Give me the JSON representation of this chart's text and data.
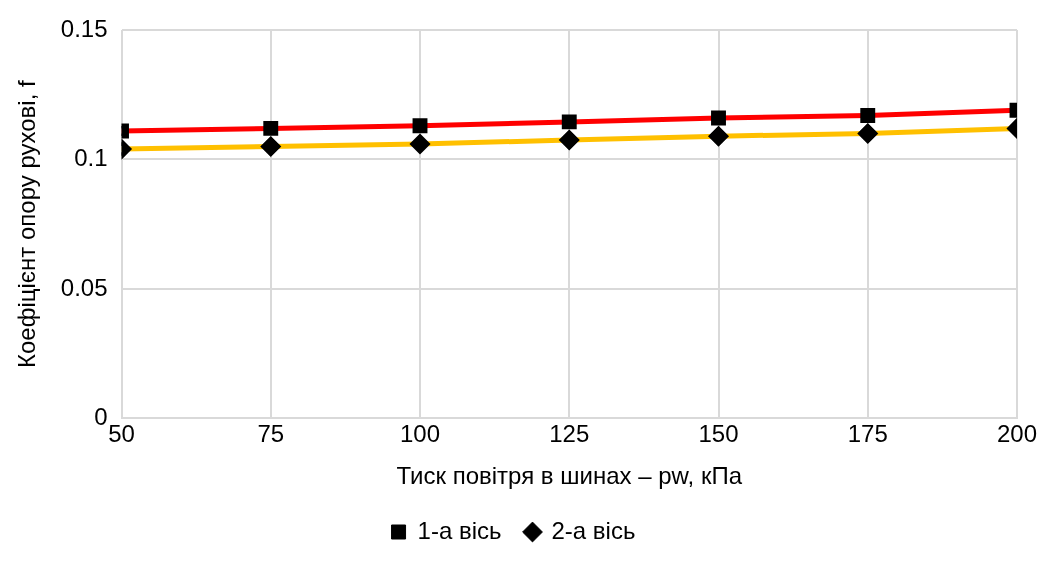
{
  "chart_data": {
    "type": "line",
    "xlabel": "Тиск повітря в шинах – pw, кПа",
    "ylabel": "Коефіцієнт опору руховi, f",
    "x": [
      50,
      75,
      100,
      125,
      150,
      175,
      200
    ],
    "series": [
      {
        "name": "1-а вісь",
        "color": "#ff0000",
        "marker": "square",
        "values": [
          0.111,
          0.112,
          0.113,
          0.1145,
          0.116,
          0.117,
          0.119
        ]
      },
      {
        "name": "2-а вісь",
        "color": "#ffc000",
        "marker": "diamond",
        "values": [
          0.104,
          0.105,
          0.106,
          0.1075,
          0.109,
          0.11,
          0.112
        ]
      }
    ],
    "xlim": [
      50,
      200
    ],
    "xticks": [
      50,
      75,
      100,
      125,
      150,
      175,
      200
    ],
    "ylim": [
      0,
      0.15
    ],
    "yticks": [
      0,
      0.05,
      0.1,
      0.15
    ],
    "grid": true,
    "legend": "bottom",
    "line_style": "solid"
  }
}
